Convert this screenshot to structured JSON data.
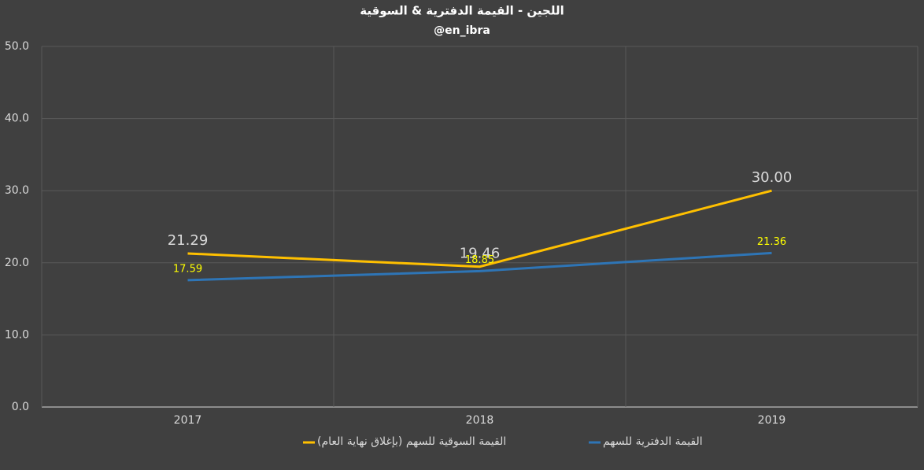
{
  "chart_data": {
    "type": "line",
    "title": "اللجين - القيمة الدفترية & السوقية",
    "subtitle": "@en_ibra",
    "categories": [
      "2017",
      "2018",
      "2019"
    ],
    "series": [
      {
        "name": "القيمة السوقية للسهم (بإغلاق نهاية العام)",
        "color": "#ffc000",
        "values": [
          21.29,
          19.46,
          30.0
        ],
        "value_labels": [
          "21.29",
          "19.46",
          "30.00"
        ]
      },
      {
        "name": "القيمة الدفترية للسهم",
        "color": "#2e75b6",
        "values": [
          17.59,
          18.85,
          21.36
        ]
      }
    ],
    "ylim": [
      0,
      50
    ],
    "yticks": [
      {
        "value": 0,
        "label": "0.0"
      },
      {
        "value": 10,
        "label": "10.0"
      },
      {
        "value": 20,
        "label": "20.0"
      },
      {
        "value": 30,
        "label": "30.0"
      },
      {
        "value": 40,
        "label": "40.0"
      },
      {
        "value": 50,
        "label": "50.0"
      }
    ],
    "grid": true
  }
}
